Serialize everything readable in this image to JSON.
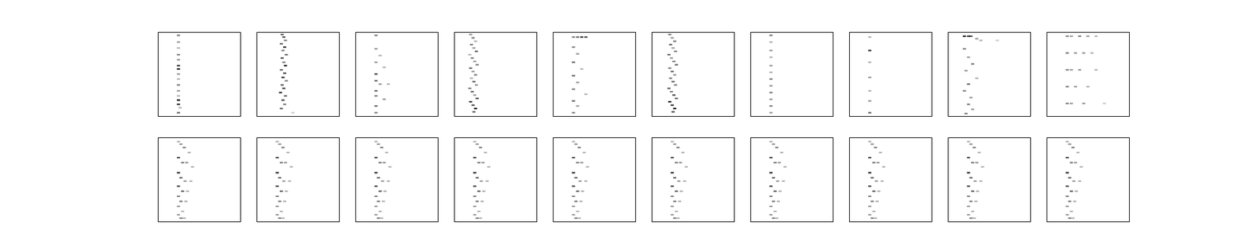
{
  "chart_data": [
    {
      "type": "heatmap",
      "tick_labels": false,
      "color": "#000000",
      "xlim": [
        0,
        100
      ],
      "ylim": [
        0,
        100
      ],
      "x": [
        25,
        25,
        25,
        25,
        25,
        25,
        25,
        25,
        25,
        25,
        25,
        25,
        25,
        25,
        27,
        25
      ],
      "y": [
        4,
        12,
        19,
        27,
        33,
        40,
        44,
        50,
        56,
        63,
        70,
        76,
        81,
        86,
        90,
        96
      ],
      "values": [
        0.5,
        0.4,
        0.3,
        0.5,
        0.4,
        0.8,
        0.9,
        0.4,
        0.3,
        0.5,
        0.4,
        0.3,
        0.9,
        0.8,
        0.3,
        0.6
      ]
    },
    {
      "type": "heatmap",
      "tick_labels": false,
      "color": "#000000",
      "xlim": [
        0,
        100
      ],
      "ylim": [
        0,
        100
      ],
      "x": [
        31,
        33,
        35,
        30,
        34,
        32,
        36,
        31,
        33,
        35,
        30,
        34,
        32,
        36,
        31,
        33,
        29,
        35,
        32,
        34,
        30,
        44
      ],
      "y": [
        3,
        6,
        10,
        14,
        18,
        22,
        27,
        31,
        36,
        40,
        45,
        49,
        54,
        58,
        63,
        67,
        72,
        76,
        81,
        86,
        91,
        96
      ],
      "values": [
        0.6,
        0.7,
        0.5,
        0.6,
        0.8,
        0.5,
        0.6,
        0.7,
        0.5,
        0.9,
        0.6,
        0.7,
        0.8,
        0.5,
        0.6,
        0.7,
        0.8,
        0.6,
        0.7,
        0.5,
        0.6,
        0.2
      ]
    },
    {
      "type": "heatmap",
      "tick_labels": false,
      "color": "#000000",
      "xlim": [
        0,
        100
      ],
      "ylim": [
        0,
        100
      ],
      "x": [
        25,
        25,
        30,
        25,
        35,
        25,
        25,
        30,
        40,
        25,
        25,
        35,
        25,
        25
      ],
      "y": [
        4,
        20,
        28,
        36,
        42,
        50,
        58,
        62,
        62,
        70,
        76,
        80,
        88,
        96
      ],
      "values": [
        0.5,
        0.4,
        0.3,
        0.4,
        0.3,
        0.7,
        0.6,
        0.4,
        0.3,
        0.6,
        0.5,
        0.4,
        0.6,
        0.5
      ]
    },
    {
      "type": "heatmap",
      "tick_labels": false,
      "color": "#000000",
      "xlim": [
        0,
        100
      ],
      "ylim": [
        0,
        100
      ],
      "x": [
        20,
        23,
        26,
        21,
        24,
        27,
        19,
        22,
        25,
        28,
        20,
        23,
        26,
        21,
        24,
        27,
        19,
        22,
        25,
        28,
        20,
        23,
        26,
        24
      ],
      "y": [
        3,
        7,
        11,
        15,
        19,
        23,
        27,
        31,
        35,
        39,
        43,
        47,
        51,
        55,
        59,
        63,
        67,
        71,
        75,
        79,
        83,
        87,
        91,
        95
      ],
      "values": [
        0.4,
        0.5,
        0.3,
        0.5,
        0.4,
        0.6,
        0.3,
        0.5,
        0.4,
        0.5,
        0.6,
        0.4,
        0.5,
        0.3,
        0.6,
        0.4,
        0.5,
        0.6,
        0.4,
        0.7,
        0.8,
        0.7,
        0.9,
        0.6
      ]
    },
    {
      "type": "heatmap",
      "tick_labels": false,
      "color": "#000000",
      "xlim": [
        0,
        100
      ],
      "ylim": [
        0,
        100
      ],
      "x": [
        25,
        30,
        35,
        40,
        25,
        30,
        25,
        35,
        25,
        30,
        25,
        40,
        25,
        30,
        25
      ],
      "y": [
        6,
        6,
        6,
        6,
        18,
        26,
        36,
        44,
        52,
        60,
        68,
        74,
        82,
        88,
        96
      ],
      "values": [
        0.5,
        0.6,
        0.8,
        0.7,
        0.5,
        0.4,
        0.6,
        0.3,
        0.6,
        0.4,
        0.5,
        0.3,
        0.6,
        0.4,
        0.5
      ]
    },
    {
      "type": "heatmap",
      "tick_labels": false,
      "color": "#000000",
      "xlim": [
        0,
        100
      ],
      "ylim": [
        0,
        100
      ],
      "x": [
        22,
        25,
        28,
        23,
        26,
        29,
        21,
        24,
        27,
        30,
        22,
        25,
        28,
        23,
        26,
        29,
        21,
        24,
        27,
        30,
        22,
        25,
        28,
        26
      ],
      "y": [
        3,
        7,
        11,
        15,
        19,
        23,
        27,
        31,
        35,
        39,
        43,
        47,
        51,
        55,
        59,
        63,
        67,
        71,
        75,
        79,
        83,
        87,
        91,
        95
      ],
      "values": [
        0.5,
        0.4,
        0.5,
        0.6,
        0.4,
        0.5,
        0.6,
        0.4,
        0.5,
        0.6,
        0.5,
        0.6,
        0.4,
        0.5,
        0.6,
        0.5,
        0.6,
        0.5,
        0.7,
        0.6,
        0.9,
        0.8,
        0.9,
        0.7
      ]
    },
    {
      "type": "heatmap",
      "tick_labels": false,
      "color": "#000000",
      "xlim": [
        0,
        100
      ],
      "ylim": [
        0,
        100
      ],
      "x": [
        25,
        25,
        25,
        25,
        25,
        25,
        25,
        25,
        25,
        25,
        25,
        25
      ],
      "y": [
        4,
        12,
        22,
        30,
        40,
        48,
        56,
        64,
        72,
        80,
        88,
        96
      ],
      "values": [
        0.5,
        0.3,
        0.4,
        0.3,
        0.4,
        0.3,
        0.5,
        0.4,
        0.5,
        0.4,
        0.5,
        0.4
      ]
    },
    {
      "type": "heatmap",
      "tick_labels": false,
      "color": "#000000",
      "xlim": [
        0,
        100
      ],
      "ylim": [
        0,
        100
      ],
      "x": [
        25,
        25,
        25,
        25,
        25,
        25,
        25
      ],
      "y": [
        6,
        22,
        36,
        54,
        70,
        82,
        96
      ],
      "values": [
        0.3,
        0.8,
        0.3,
        0.4,
        0.3,
        0.4,
        0.6
      ]
    },
    {
      "type": "heatmap",
      "tick_labels": false,
      "color": "#000000",
      "xlim": [
        0,
        100
      ],
      "ylim": [
        0,
        100
      ],
      "x": [
        20,
        25,
        28,
        35,
        40,
        60,
        20,
        25,
        30,
        22,
        35,
        25,
        20,
        28,
        25,
        30,
        22
      ],
      "y": [
        5,
        5,
        5,
        8,
        10,
        10,
        20,
        30,
        38,
        46,
        55,
        62,
        70,
        78,
        86,
        92,
        97
      ],
      "values": [
        0.9,
        0.8,
        0.7,
        0.4,
        0.3,
        0.2,
        0.5,
        0.4,
        0.5,
        0.4,
        0.3,
        0.6,
        0.5,
        0.4,
        0.5,
        0.4,
        0.5
      ]
    },
    {
      "type": "heatmap",
      "tick_labels": false,
      "color": "#000000",
      "xlim": [
        0,
        100
      ],
      "ylim": [
        0,
        100
      ],
      "x": [
        25,
        30,
        40,
        50,
        60,
        25,
        35,
        45,
        55,
        25,
        30,
        40,
        60,
        25,
        35,
        50,
        25,
        30,
        45,
        70
      ],
      "y": [
        5,
        5,
        5,
        5,
        5,
        25,
        25,
        25,
        25,
        45,
        45,
        45,
        45,
        65,
        65,
        65,
        85,
        85,
        85,
        85
      ],
      "values": [
        0.5,
        0.4,
        0.5,
        0.4,
        0.3,
        0.5,
        0.4,
        0.4,
        0.3,
        0.5,
        0.4,
        0.4,
        0.3,
        0.5,
        0.4,
        0.3,
        0.5,
        0.4,
        0.4,
        0.2
      ]
    },
    {
      "type": "heatmap",
      "tick_labels": false,
      "color": "#000000",
      "xlim": [
        0,
        100
      ],
      "ylim": [
        0,
        100
      ],
      "x": [
        25,
        28,
        32,
        38,
        25,
        30,
        35,
        42,
        25,
        28,
        33,
        40,
        25,
        30,
        36,
        25,
        28,
        34,
        25,
        30,
        25,
        28,
        32
      ],
      "y": [
        5,
        8,
        12,
        18,
        24,
        30,
        30,
        35,
        42,
        48,
        52,
        52,
        58,
        64,
        64,
        70,
        76,
        76,
        82,
        88,
        92,
        96,
        96
      ],
      "values": [
        0.3,
        0.4,
        0.5,
        0.3,
        0.7,
        0.5,
        0.4,
        0.3,
        0.8,
        0.6,
        0.4,
        0.3,
        0.7,
        0.6,
        0.3,
        0.5,
        0.5,
        0.3,
        0.4,
        0.3,
        0.4,
        0.5,
        0.3
      ]
    },
    {
      "type": "heatmap",
      "tick_labels": false,
      "color": "#000000",
      "xlim": [
        0,
        100
      ],
      "ylim": [
        0,
        100
      ],
      "x": [
        25,
        28,
        32,
        38,
        25,
        30,
        35,
        42,
        25,
        28,
        33,
        40,
        25,
        30,
        36,
        25,
        28,
        34,
        25,
        30,
        25,
        28,
        32
      ],
      "y": [
        5,
        8,
        12,
        18,
        24,
        30,
        30,
        35,
        42,
        48,
        52,
        52,
        58,
        64,
        64,
        70,
        76,
        76,
        82,
        88,
        92,
        96,
        96
      ],
      "values": [
        0.3,
        0.4,
        0.5,
        0.3,
        0.7,
        0.5,
        0.4,
        0.3,
        0.8,
        0.6,
        0.4,
        0.3,
        0.7,
        0.6,
        0.3,
        0.5,
        0.5,
        0.3,
        0.4,
        0.3,
        0.4,
        0.5,
        0.3
      ]
    },
    {
      "type": "heatmap",
      "tick_labels": false,
      "color": "#000000",
      "xlim": [
        0,
        100
      ],
      "ylim": [
        0,
        100
      ],
      "x": [
        25,
        28,
        32,
        38,
        25,
        30,
        35,
        42,
        25,
        28,
        33,
        40,
        25,
        30,
        36,
        25,
        28,
        34,
        25,
        30,
        25,
        28,
        32
      ],
      "y": [
        5,
        8,
        12,
        18,
        24,
        30,
        30,
        35,
        42,
        48,
        52,
        52,
        58,
        64,
        64,
        70,
        76,
        76,
        82,
        88,
        92,
        96,
        96
      ],
      "values": [
        0.3,
        0.4,
        0.5,
        0.3,
        0.7,
        0.5,
        0.4,
        0.3,
        0.8,
        0.6,
        0.4,
        0.3,
        0.7,
        0.6,
        0.3,
        0.5,
        0.5,
        0.3,
        0.4,
        0.3,
        0.4,
        0.5,
        0.3
      ]
    },
    {
      "type": "heatmap",
      "tick_labels": false,
      "color": "#000000",
      "xlim": [
        0,
        100
      ],
      "ylim": [
        0,
        100
      ],
      "x": [
        25,
        28,
        32,
        38,
        25,
        30,
        35,
        42,
        25,
        28,
        33,
        40,
        25,
        30,
        36,
        25,
        28,
        34,
        25,
        30,
        25,
        28,
        32
      ],
      "y": [
        5,
        8,
        12,
        18,
        24,
        30,
        30,
        35,
        42,
        48,
        52,
        52,
        58,
        64,
        64,
        70,
        76,
        76,
        82,
        88,
        92,
        96,
        96
      ],
      "values": [
        0.3,
        0.4,
        0.5,
        0.3,
        0.7,
        0.5,
        0.4,
        0.3,
        0.8,
        0.6,
        0.4,
        0.3,
        0.7,
        0.6,
        0.3,
        0.5,
        0.5,
        0.3,
        0.4,
        0.3,
        0.4,
        0.5,
        0.3
      ]
    },
    {
      "type": "heatmap",
      "tick_labels": false,
      "color": "#000000",
      "xlim": [
        0,
        100
      ],
      "ylim": [
        0,
        100
      ],
      "x": [
        25,
        28,
        32,
        38,
        25,
        30,
        35,
        42,
        25,
        28,
        33,
        40,
        25,
        30,
        36,
        25,
        28,
        34,
        25,
        30,
        25,
        28,
        32
      ],
      "y": [
        5,
        8,
        12,
        18,
        24,
        30,
        30,
        35,
        42,
        48,
        52,
        52,
        58,
        64,
        64,
        70,
        76,
        76,
        82,
        88,
        92,
        96,
        96
      ],
      "values": [
        0.3,
        0.4,
        0.5,
        0.3,
        0.7,
        0.5,
        0.4,
        0.3,
        0.8,
        0.6,
        0.4,
        0.3,
        0.7,
        0.6,
        0.3,
        0.5,
        0.5,
        0.3,
        0.4,
        0.3,
        0.4,
        0.5,
        0.3
      ]
    },
    {
      "type": "heatmap",
      "tick_labels": false,
      "color": "#000000",
      "xlim": [
        0,
        100
      ],
      "ylim": [
        0,
        100
      ],
      "x": [
        25,
        28,
        32,
        38,
        25,
        30,
        35,
        42,
        25,
        28,
        33,
        40,
        25,
        30,
        36,
        25,
        28,
        34,
        25,
        30,
        25,
        28,
        32
      ],
      "y": [
        5,
        8,
        12,
        18,
        24,
        30,
        30,
        35,
        42,
        48,
        52,
        52,
        58,
        64,
        64,
        70,
        76,
        76,
        82,
        88,
        92,
        96,
        96
      ],
      "values": [
        0.3,
        0.4,
        0.5,
        0.3,
        0.7,
        0.5,
        0.4,
        0.3,
        0.8,
        0.6,
        0.4,
        0.3,
        0.7,
        0.6,
        0.3,
        0.5,
        0.5,
        0.3,
        0.4,
        0.3,
        0.4,
        0.5,
        0.3
      ]
    },
    {
      "type": "heatmap",
      "tick_labels": false,
      "color": "#000000",
      "xlim": [
        0,
        100
      ],
      "ylim": [
        0,
        100
      ],
      "x": [
        25,
        28,
        32,
        38,
        25,
        30,
        35,
        42,
        25,
        28,
        33,
        40,
        25,
        30,
        36,
        25,
        28,
        34,
        25,
        30,
        25,
        28,
        32
      ],
      "y": [
        5,
        8,
        12,
        18,
        24,
        30,
        30,
        35,
        42,
        48,
        52,
        52,
        58,
        64,
        64,
        70,
        76,
        76,
        82,
        88,
        92,
        96,
        96
      ],
      "values": [
        0.3,
        0.4,
        0.5,
        0.3,
        0.7,
        0.5,
        0.4,
        0.3,
        0.8,
        0.6,
        0.4,
        0.3,
        0.7,
        0.6,
        0.3,
        0.5,
        0.5,
        0.3,
        0.4,
        0.3,
        0.4,
        0.5,
        0.3
      ]
    },
    {
      "type": "heatmap",
      "tick_labels": false,
      "color": "#000000",
      "xlim": [
        0,
        100
      ],
      "ylim": [
        0,
        100
      ],
      "x": [
        25,
        28,
        32,
        38,
        25,
        30,
        35,
        42,
        25,
        28,
        33,
        40,
        25,
        30,
        36,
        25,
        28,
        34,
        25,
        30,
        25,
        28,
        32
      ],
      "y": [
        5,
        8,
        12,
        18,
        24,
        30,
        30,
        35,
        42,
        48,
        52,
        52,
        58,
        64,
        64,
        70,
        76,
        76,
        82,
        88,
        92,
        96,
        96
      ],
      "values": [
        0.3,
        0.4,
        0.5,
        0.3,
        0.7,
        0.5,
        0.4,
        0.3,
        0.8,
        0.6,
        0.4,
        0.3,
        0.7,
        0.6,
        0.3,
        0.5,
        0.5,
        0.3,
        0.4,
        0.3,
        0.4,
        0.5,
        0.3
      ]
    },
    {
      "type": "heatmap",
      "tick_labels": false,
      "color": "#000000",
      "xlim": [
        0,
        100
      ],
      "ylim": [
        0,
        100
      ],
      "x": [
        25,
        28,
        32,
        38,
        25,
        30,
        35,
        42,
        25,
        28,
        33,
        40,
        25,
        30,
        36,
        25,
        28,
        34,
        25,
        30,
        25,
        28,
        32
      ],
      "y": [
        5,
        8,
        12,
        18,
        24,
        30,
        30,
        35,
        42,
        48,
        52,
        52,
        58,
        64,
        64,
        70,
        76,
        76,
        82,
        88,
        92,
        96,
        96
      ],
      "values": [
        0.3,
        0.4,
        0.5,
        0.3,
        0.7,
        0.5,
        0.4,
        0.3,
        0.8,
        0.6,
        0.4,
        0.3,
        0.7,
        0.6,
        0.3,
        0.5,
        0.5,
        0.3,
        0.4,
        0.3,
        0.4,
        0.5,
        0.3
      ]
    },
    {
      "type": "heatmap",
      "tick_labels": false,
      "color": "#000000",
      "xlim": [
        0,
        100
      ],
      "ylim": [
        0,
        100
      ],
      "x": [
        25,
        28,
        32,
        38,
        25,
        30,
        35,
        42,
        25,
        28,
        33,
        40,
        25,
        30,
        36,
        25,
        28,
        34,
        25,
        30,
        25,
        28,
        32
      ],
      "y": [
        5,
        8,
        12,
        18,
        24,
        30,
        30,
        35,
        42,
        48,
        52,
        52,
        58,
        64,
        64,
        70,
        76,
        76,
        82,
        88,
        92,
        96,
        96
      ],
      "values": [
        0.3,
        0.4,
        0.5,
        0.3,
        0.7,
        0.5,
        0.4,
        0.3,
        0.8,
        0.6,
        0.4,
        0.3,
        0.7,
        0.6,
        0.3,
        0.5,
        0.5,
        0.3,
        0.4,
        0.3,
        0.4,
        0.5,
        0.3
      ]
    }
  ]
}
